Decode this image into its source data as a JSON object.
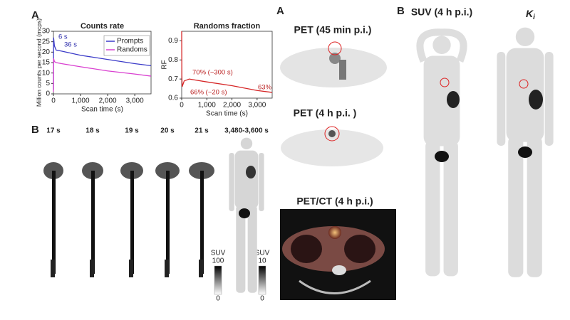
{
  "panel_labels": [
    "A",
    "B",
    "A",
    "B"
  ],
  "chart_data": [
    {
      "type": "line",
      "title": "Counts rate",
      "x_label": "Scan time (s)",
      "y_label": "Million counts per second (mcps)",
      "x": [
        0,
        6,
        36,
        100,
        300,
        1000,
        2000,
        3000,
        3600
      ],
      "series": [
        {
          "name": "Prompts",
          "color": "#3a3ac8",
          "values": [
            2,
            27,
            23,
            21,
            20.5,
            18.5,
            16.5,
            14.5,
            13.5
          ]
        },
        {
          "name": "Randoms",
          "color": "#d940d0",
          "values": [
            1,
            17,
            15.5,
            15,
            14.5,
            13,
            11,
            9.5,
            8.5
          ]
        }
      ],
      "xlim": [
        0,
        3600
      ],
      "xticks": [
        0,
        {
          "value": 1000,
          "label": "1,000"
        },
        {
          "value": 2000,
          "label": "2,000"
        },
        {
          "value": 3000,
          "label": "3,000"
        }
      ],
      "ylim": [
        0,
        30
      ],
      "yticks": [
        0,
        5,
        10,
        15,
        20,
        25,
        30
      ],
      "legend": "upper right",
      "annotations": [
        "6 s",
        "36 s"
      ]
    },
    {
      "type": "line",
      "title": "Randoms fraction",
      "x_label": "Scan time (s)",
      "y_label": "RF",
      "x": [
        0,
        6,
        20,
        100,
        300,
        1000,
        2000,
        3000,
        3600
      ],
      "series": [
        {
          "name": "RF",
          "color": "#d62728",
          "values": [
            0.95,
            0.72,
            0.66,
            0.69,
            0.7,
            0.685,
            0.665,
            0.64,
            0.63
          ]
        }
      ],
      "xlim": [
        0,
        3600
      ],
      "xticks": [
        0,
        {
          "value": 1000,
          "label": "1,000"
        },
        {
          "value": 2000,
          "label": "2,000"
        },
        {
          "value": 3000,
          "label": "3,000"
        }
      ],
      "ylim": [
        0.6,
        0.95
      ],
      "yticks": [
        0.6,
        0.7,
        0.8,
        0.9
      ],
      "annotations": [
        "70% (~300 s)",
        "66% (~20 s)",
        "63%"
      ]
    }
  ],
  "dynamic_frames": {
    "labels": [
      "17 s",
      "18 s",
      "19 s",
      "20 s",
      "21 s",
      "3,480-3,600 s"
    ],
    "colorbars": [
      {
        "title": "SUV",
        "max": 100,
        "min": 0
      },
      {
        "title": "SUV",
        "max": 10,
        "min": 0
      }
    ]
  },
  "pet_panels": [
    "PET (45 min p.i.)",
    "PET (4 h p.i. )",
    "PET/CT (4 h p.i.)"
  ],
  "whole_body": {
    "suv_title": "SUV (4 h p.i.)",
    "ki": {
      "main": "K",
      "sub": "i"
    }
  }
}
